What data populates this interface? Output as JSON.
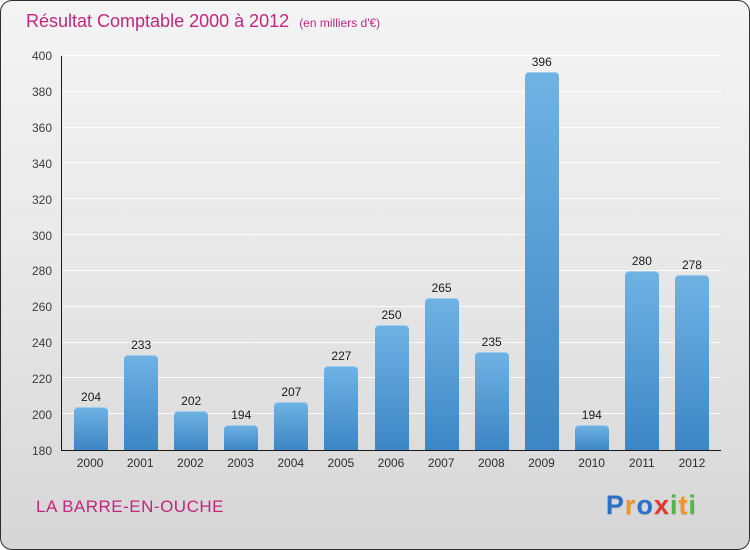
{
  "header": {
    "title": "Résultat Comptable 2000 à 2012",
    "subtitle": "(en milliers d'€)"
  },
  "footer": {
    "commune": "LA BARRE-EN-OUCHE"
  },
  "logo": {
    "text": "Proxiti",
    "letters": [
      {
        "ch": "P",
        "color": "#2b6fc9"
      },
      {
        "ch": "r",
        "color": "#f6921e"
      },
      {
        "ch": "o",
        "color": "#2b6fc9"
      },
      {
        "ch": "x",
        "color": "#e23b2e"
      },
      {
        "ch": "i",
        "color": "#51b748"
      },
      {
        "ch": "t",
        "color": "#f6921e"
      },
      {
        "ch": "i",
        "color": "#51b748"
      }
    ]
  },
  "chart_data": {
    "type": "bar",
    "title": "Résultat Comptable 2000 à 2012",
    "subtitle": "(en milliers d'€)",
    "categories": [
      "2000",
      "2001",
      "2002",
      "2003",
      "2004",
      "2005",
      "2006",
      "2007",
      "2008",
      "2009",
      "2010",
      "2011",
      "2012"
    ],
    "values": [
      204,
      233,
      202,
      194,
      207,
      227,
      250,
      265,
      235,
      396,
      194,
      280,
      278
    ],
    "xlabel": "",
    "ylabel": "",
    "ylim": [
      180,
      400
    ],
    "ytick_step": 20,
    "grid": true,
    "legend": false,
    "bar_color_top": "#6fb3e4",
    "bar_color_bottom": "#3d86c5",
    "value_labels": true
  }
}
